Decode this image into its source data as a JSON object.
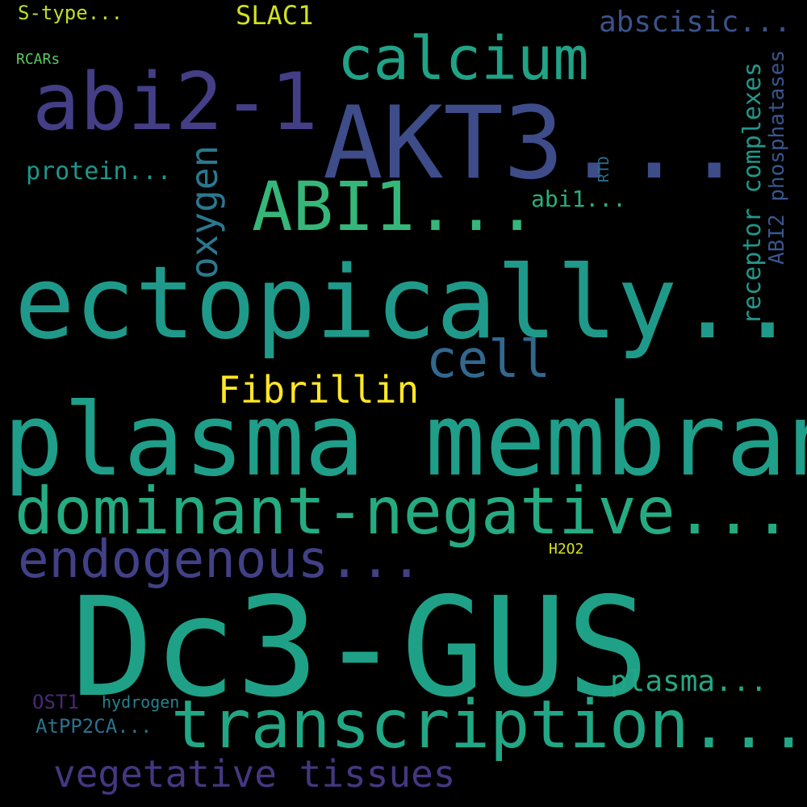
{
  "words": [
    {
      "id": "stype",
      "text": "S-type...",
      "color": "#bddf26"
    },
    {
      "id": "slac1",
      "text": "SLAC1",
      "color": "#d2e21b"
    },
    {
      "id": "abscisic",
      "text": "abscisic...",
      "color": "#3b528b"
    },
    {
      "id": "rcars",
      "text": "RCARs",
      "color": "#5ec962"
    },
    {
      "id": "calcium",
      "text": "calcium",
      "color": "#20a386"
    },
    {
      "id": "abi21",
      "text": "abi2-1",
      "color": "#433e85"
    },
    {
      "id": "akt3",
      "text": "AKT3...",
      "color": "#3e4c8a"
    },
    {
      "id": "protein",
      "text": "protein...",
      "color": "#1f968b"
    },
    {
      "id": "abi1a",
      "text": "ABI1...",
      "color": "#35b779"
    },
    {
      "id": "abi1b",
      "text": "abi1...",
      "color": "#29af7f"
    },
    {
      "id": "ecto",
      "text": "ectopically...",
      "color": "#1f9a8a"
    },
    {
      "id": "cell",
      "text": "cell",
      "color": "#31688e"
    },
    {
      "id": "fibr",
      "text": "Fibrillin",
      "color": "#fde725"
    },
    {
      "id": "plasmam",
      "text": "plasma membrane",
      "color": "#1f9e89"
    },
    {
      "id": "dominant",
      "text": "dominant-negative...",
      "color": "#25ab82"
    },
    {
      "id": "endo",
      "text": "endogenous...",
      "color": "#424086"
    },
    {
      "id": "h2o2",
      "text": "H2O2",
      "color": "#d8e219"
    },
    {
      "id": "dc3",
      "text": "Dc3-GUS",
      "color": "#1fa187"
    },
    {
      "id": "plasma",
      "text": "plasma...",
      "color": "#22a884"
    },
    {
      "id": "ost1",
      "text": "OST1",
      "color": "#482878"
    },
    {
      "id": "hydrogen",
      "text": "hydrogen",
      "color": "#26828e"
    },
    {
      "id": "transc",
      "text": "transcription...",
      "color": "#22a785"
    },
    {
      "id": "atpp2ca",
      "text": "AtPP2CA...",
      "color": "#2c728e"
    },
    {
      "id": "veget",
      "text": "vegetative tissues",
      "color": "#453781"
    },
    {
      "id": "oxygen",
      "text": "oxygen",
      "color": "#2a788e"
    },
    {
      "id": "rtd",
      "text": "RTD",
      "color": "#2d708e"
    },
    {
      "id": "receptor",
      "text": "receptor complexes",
      "color": "#22978a"
    },
    {
      "id": "abi2p",
      "text": "ABI2 phosphatases",
      "color": "#39558c"
    }
  ]
}
